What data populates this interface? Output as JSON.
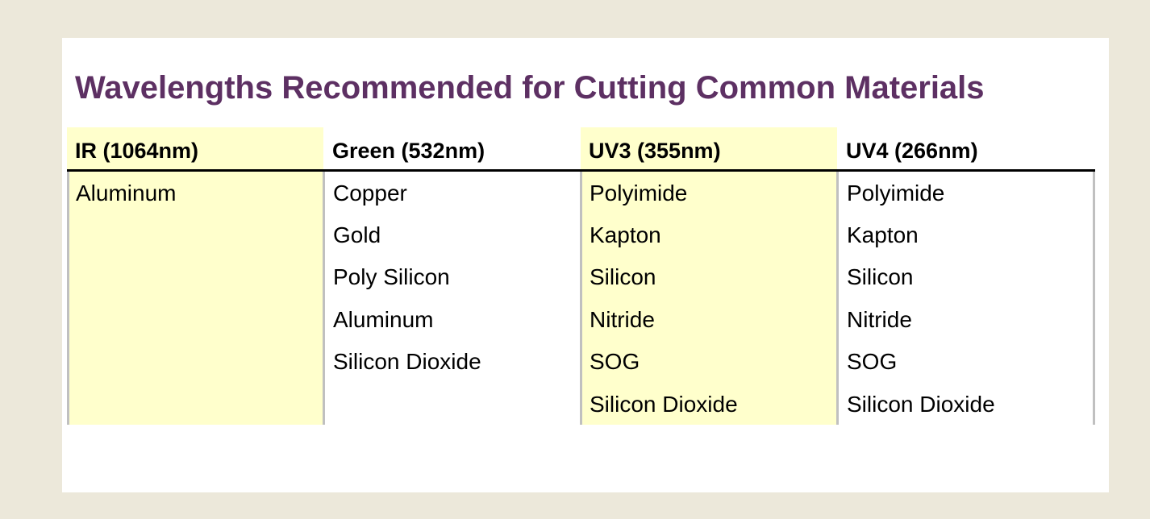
{
  "slide": {
    "title": "Wavelengths Recommended for Cutting Common Materials"
  },
  "table": {
    "columns": [
      {
        "header": "IR (1064nm)",
        "shaded": true,
        "materials": [
          "Aluminum"
        ]
      },
      {
        "header": "Green (532nm)",
        "shaded": false,
        "materials": [
          "Copper",
          "Gold",
          "Poly Silicon",
          "Aluminum",
          "Silicon Dioxide"
        ]
      },
      {
        "header": "UV3 (355nm)",
        "shaded": true,
        "materials": [
          "Polyimide",
          "Kapton",
          "Silicon",
          "Nitride",
          "SOG",
          "Silicon Dioxide"
        ]
      },
      {
        "header": "UV4 (266nm)",
        "shaded": false,
        "materials": [
          "Polyimide",
          "Kapton",
          "Silicon",
          "Nitride",
          "SOG",
          "Silicon Dioxide"
        ]
      }
    ]
  },
  "colors": {
    "background": "#ece8da",
    "card": "#ffffff",
    "title": "#5d3063",
    "column_shading": "#ffffcc",
    "header_rule": "#000000",
    "column_dividers": "#c0c0c0"
  }
}
